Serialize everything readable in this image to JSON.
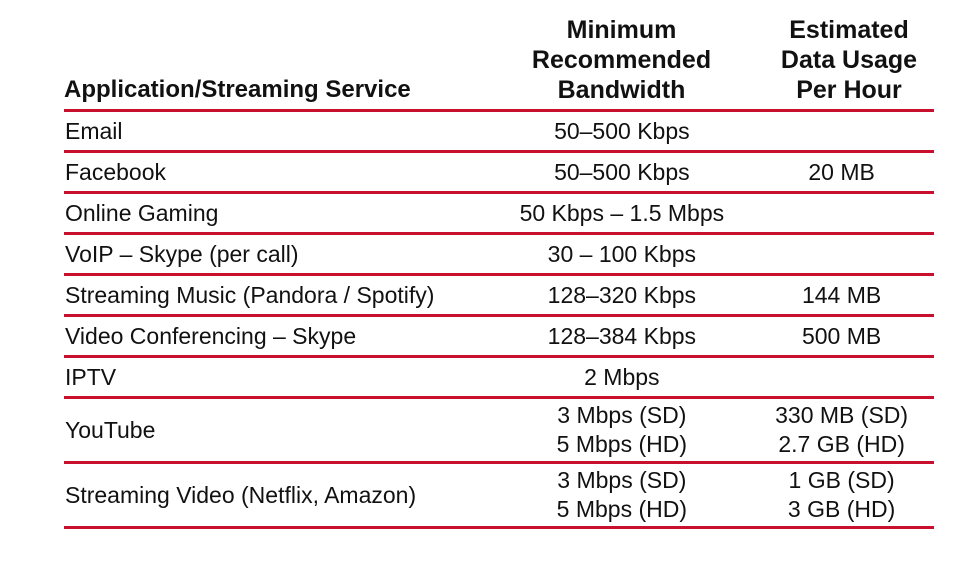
{
  "table": {
    "headers": {
      "application": "Application/Streaming Service",
      "bandwidth": [
        "Minimum",
        "Recommended",
        "Bandwidth"
      ],
      "usage": [
        "Estimated",
        "Data Usage",
        "Per Hour"
      ]
    },
    "rows": [
      {
        "app": "Email",
        "bandwidth": [
          "50–500 Kbps"
        ],
        "usage": [
          ""
        ]
      },
      {
        "app": "Facebook",
        "bandwidth": [
          "50–500 Kbps"
        ],
        "usage": [
          "20 MB"
        ]
      },
      {
        "app": "Online Gaming",
        "bandwidth": [
          "50 Kbps – 1.5 Mbps"
        ],
        "usage": [
          ""
        ]
      },
      {
        "app": "VoIP – Skype (per call)",
        "bandwidth": [
          "30 – 100 Kbps"
        ],
        "usage": [
          ""
        ]
      },
      {
        "app": "Streaming Music (Pandora / Spotify)",
        "bandwidth": [
          "128–320 Kbps"
        ],
        "usage": [
          "144 MB"
        ]
      },
      {
        "app": "Video Conferencing – Skype",
        "bandwidth": [
          "128–384 Kbps"
        ],
        "usage": [
          "500 MB"
        ]
      },
      {
        "app": "IPTV",
        "bandwidth": [
          "2 Mbps"
        ],
        "usage": [
          ""
        ]
      },
      {
        "app": "YouTube",
        "bandwidth": [
          "3 Mbps (SD)",
          "5 Mbps (HD)"
        ],
        "usage": [
          "330 MB (SD)",
          "2.7 GB (HD)"
        ]
      },
      {
        "app": "Streaming Video (Netflix, Amazon)",
        "bandwidth": [
          "3 Mbps (SD)",
          "5 Mbps (HD)"
        ],
        "usage": [
          "1 GB (SD)",
          "3 GB (HD)"
        ]
      }
    ]
  },
  "colors": {
    "rule": "#c8102e",
    "text": "#111111",
    "background": "#ffffff"
  }
}
